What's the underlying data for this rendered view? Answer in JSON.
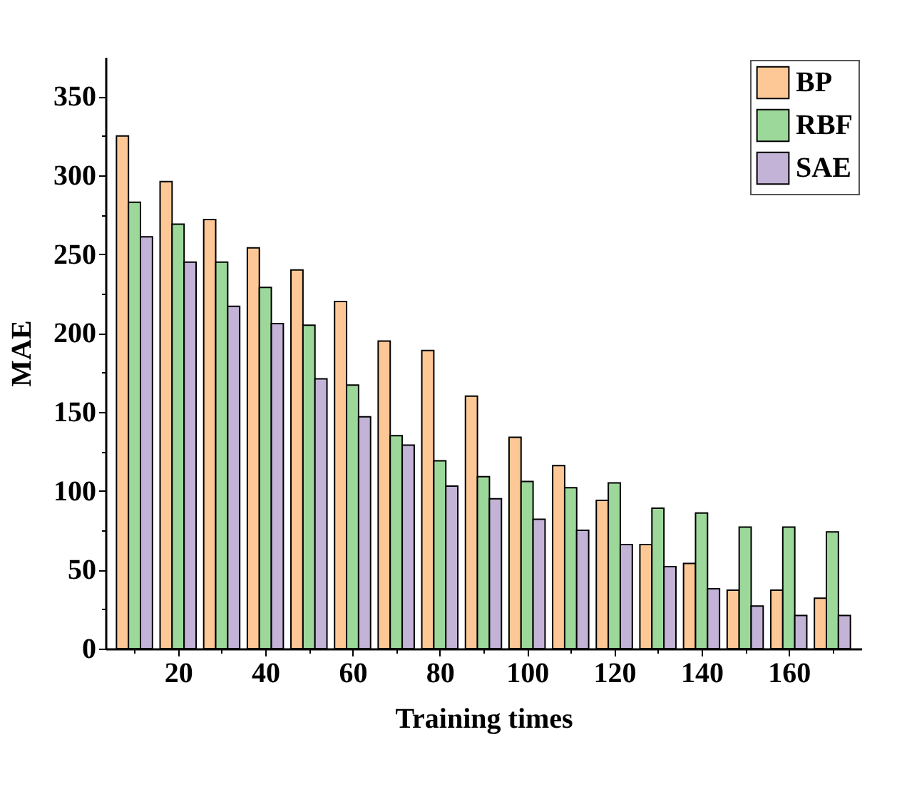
{
  "chart_data": {
    "type": "bar",
    "xlabel": "Training times",
    "ylabel": "MAE",
    "x": [
      10,
      20,
      30,
      40,
      50,
      60,
      70,
      80,
      90,
      100,
      110,
      120,
      130,
      140,
      150,
      160,
      170
    ],
    "series": [
      {
        "name": "BP",
        "color": "#fdc896",
        "values": [
          325,
          296,
          272,
          254,
          240,
          220,
          195,
          189,
          160,
          134,
          116,
          94,
          66,
          54,
          37,
          37,
          32
        ]
      },
      {
        "name": "RBF",
        "color": "#9dd89b",
        "values": [
          283,
          269,
          245,
          229,
          205,
          167,
          135,
          119,
          109,
          106,
          102,
          105,
          89,
          86,
          77,
          77,
          74
        ]
      },
      {
        "name": "SAE",
        "color": "#c2b3d7",
        "values": [
          261,
          245,
          217,
          206,
          171,
          147,
          129,
          103,
          95,
          82,
          75,
          66,
          52,
          38,
          27,
          21,
          21
        ]
      }
    ],
    "xlim": [
      5,
      175
    ],
    "xticks": [
      {
        "value": 10,
        "label": null
      },
      20,
      {
        "value": 30,
        "label": null
      },
      40,
      {
        "value": 50,
        "label": null
      },
      60,
      {
        "value": 70,
        "label": null
      },
      80,
      {
        "value": 90,
        "label": null
      },
      100,
      {
        "value": 110,
        "label": null
      },
      120,
      {
        "value": 130,
        "label": null
      },
      140,
      {
        "value": 150,
        "label": null
      },
      160,
      {
        "value": 170,
        "label": null
      }
    ],
    "ylim": [
      0,
      375
    ],
    "yticks": [
      0,
      {
        "value": 25,
        "label": null
      },
      50,
      {
        "value": 75,
        "label": null
      },
      100,
      {
        "value": 125,
        "label": null
      },
      150,
      {
        "value": 175,
        "label": null
      },
      200,
      {
        "value": 225,
        "label": null
      },
      250,
      {
        "value": 275,
        "label": null
      },
      300,
      {
        "value": 325,
        "label": null
      },
      350
    ],
    "legend": "top right",
    "grid": false
  }
}
